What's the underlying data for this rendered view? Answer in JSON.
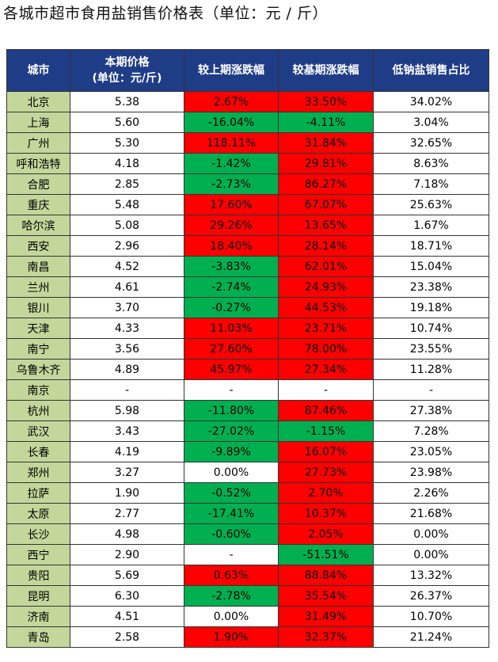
{
  "title": "各城市超市食用盐销售价格表（单位：元 / 斤）",
  "colors": {
    "header_bg": "#1f3c87",
    "city_bg": "#c4d79b",
    "increase": "#ff0000",
    "decrease": "#00b050"
  },
  "headers": [
    "城市",
    "本期价格",
    "(单位：元/斤)",
    "较上期涨跌幅",
    "较基期涨跌幅",
    "低钠盐销售占比"
  ],
  "rows": [
    {
      "city": "北京",
      "price": "5.38",
      "prev": "2.67%",
      "base": "33.50%",
      "share": "34.02%",
      "prev_c": "pos",
      "base_c": "pos"
    },
    {
      "city": "上海",
      "price": "5.60",
      "prev": "-16.04%",
      "base": "-4.11%",
      "share": "3.04%",
      "prev_c": "neg",
      "base_c": "neg"
    },
    {
      "city": "广州",
      "price": "5.30",
      "prev": "118.11%",
      "base": "31.84%",
      "share": "32.65%",
      "prev_c": "pos",
      "base_c": "pos"
    },
    {
      "city": "呼和浩特",
      "price": "4.18",
      "prev": "-1.42%",
      "base": "29.81%",
      "share": "8.63%",
      "prev_c": "neg",
      "base_c": "pos"
    },
    {
      "city": "合肥",
      "price": "2.85",
      "prev": "-2.73%",
      "base": "86.27%",
      "share": "7.18%",
      "prev_c": "neg",
      "base_c": "pos"
    },
    {
      "city": "重庆",
      "price": "5.48",
      "prev": "17.60%",
      "base": "67.07%",
      "share": "25.63%",
      "prev_c": "pos",
      "base_c": "pos"
    },
    {
      "city": "哈尔滨",
      "price": "5.08",
      "prev": "29.26%",
      "base": "13.65%",
      "share": "1.67%",
      "prev_c": "pos",
      "base_c": "pos"
    },
    {
      "city": "西安",
      "price": "2.96",
      "prev": "18.40%",
      "base": "28.14%",
      "share": "18.71%",
      "prev_c": "pos",
      "base_c": "pos"
    },
    {
      "city": "南昌",
      "price": "4.52",
      "prev": "-3.83%",
      "base": "62.01%",
      "share": "15.04%",
      "prev_c": "neg",
      "base_c": "pos"
    },
    {
      "city": "兰州",
      "price": "4.61",
      "prev": "-2.74%",
      "base": "24.93%",
      "share": "23.38%",
      "prev_c": "neg",
      "base_c": "pos"
    },
    {
      "city": "银川",
      "price": "3.70",
      "prev": "-0.27%",
      "base": "44.53%",
      "share": "19.18%",
      "prev_c": "neg",
      "base_c": "pos"
    },
    {
      "city": "天津",
      "price": "4.33",
      "prev": "11.03%",
      "base": "23.71%",
      "share": "10.74%",
      "prev_c": "pos",
      "base_c": "pos"
    },
    {
      "city": "南宁",
      "price": "3.56",
      "prev": "27.60%",
      "base": "78.00%",
      "share": "23.55%",
      "prev_c": "pos",
      "base_c": "pos"
    },
    {
      "city": "乌鲁木齐",
      "price": "4.89",
      "prev": "45.97%",
      "base": "27.34%",
      "share": "11.28%",
      "prev_c": "pos",
      "base_c": "pos"
    },
    {
      "city": "南京",
      "price": "-",
      "prev": "-",
      "base": "-",
      "share": "-",
      "prev_c": "plain",
      "base_c": "plain"
    },
    {
      "city": "杭州",
      "price": "5.98",
      "prev": "-11.80%",
      "base": "87.46%",
      "share": "27.38%",
      "prev_c": "neg",
      "base_c": "pos"
    },
    {
      "city": "武汉",
      "price": "3.43",
      "prev": "-27.02%",
      "base": "-1.15%",
      "share": "7.28%",
      "prev_c": "neg",
      "base_c": "neg"
    },
    {
      "city": "长春",
      "price": "4.19",
      "prev": "-9.89%",
      "base": "16.07%",
      "share": "23.05%",
      "prev_c": "neg",
      "base_c": "pos"
    },
    {
      "city": "郑州",
      "price": "3.27",
      "prev": "0.00%",
      "base": "27.73%",
      "share": "23.98%",
      "prev_c": "plain",
      "base_c": "pos"
    },
    {
      "city": "拉萨",
      "price": "1.90",
      "prev": "-0.52%",
      "base": "2.70%",
      "share": "2.26%",
      "prev_c": "neg",
      "base_c": "pos"
    },
    {
      "city": "太原",
      "price": "2.77",
      "prev": "-17.41%",
      "base": "10.37%",
      "share": "21.68%",
      "prev_c": "neg",
      "base_c": "pos"
    },
    {
      "city": "长沙",
      "price": "4.98",
      "prev": "-0.60%",
      "base": "2.05%",
      "share": "0.00%",
      "prev_c": "neg",
      "base_c": "pos"
    },
    {
      "city": "西宁",
      "price": "2.90",
      "prev": "-",
      "base": "-51.51%",
      "share": "0.00%",
      "prev_c": "plain",
      "base_c": "neg"
    },
    {
      "city": "贵阳",
      "price": "5.69",
      "prev": "0.63%",
      "base": "88.84%",
      "share": "13.32%",
      "prev_c": "pos",
      "base_c": "pos"
    },
    {
      "city": "昆明",
      "price": "6.30",
      "prev": "-2.78%",
      "base": "35.54%",
      "share": "26.37%",
      "prev_c": "neg",
      "base_c": "pos"
    },
    {
      "city": "济南",
      "price": "4.51",
      "prev": "0.00%",
      "base": "31.49%",
      "share": "10.70%",
      "prev_c": "plain",
      "base_c": "pos"
    },
    {
      "city": "青岛",
      "price": "2.58",
      "prev": "1.90%",
      "base": "32.37%",
      "share": "21.24%",
      "prev_c": "pos",
      "base_c": "pos"
    }
  ]
}
